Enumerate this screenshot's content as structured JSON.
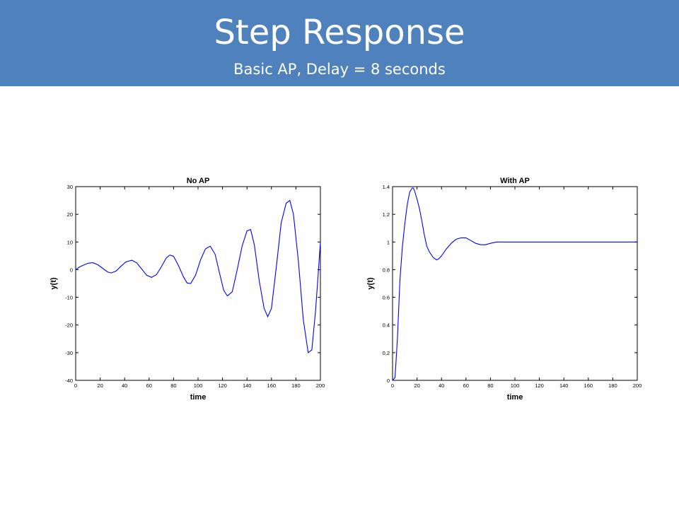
{
  "slide": {
    "title": "Step Response",
    "subtitle": "Basic AP, Delay = 8 seconds",
    "header_color": "#4f81bd"
  },
  "chart_data": [
    {
      "type": "line",
      "title": "No AP",
      "xlabel": "time",
      "ylabel": "y(t)",
      "xlim": [
        0,
        200
      ],
      "ylim": [
        -40,
        30
      ],
      "xticks": [
        0,
        20,
        40,
        60,
        80,
        100,
        120,
        140,
        160,
        180,
        200
      ],
      "yticks": [
        -40,
        -30,
        -20,
        -10,
        0,
        10,
        20,
        30
      ],
      "grid": false,
      "series": [
        {
          "color": "#0000ff",
          "x": [
            0,
            3,
            6,
            10,
            14,
            18,
            22,
            26,
            29,
            33,
            37,
            41,
            46,
            50,
            54,
            58,
            62,
            66,
            70,
            74,
            77,
            80,
            84,
            88,
            91,
            94,
            98,
            102,
            106,
            110,
            114,
            118,
            121,
            124,
            128,
            132,
            136,
            140,
            143,
            146,
            150,
            154,
            157,
            160,
            164,
            168,
            172,
            175,
            178,
            182,
            186,
            190,
            193,
            196,
            198,
            200
          ],
          "y": [
            0,
            0.9,
            1.6,
            2.3,
            2.5,
            1.8,
            0.5,
            -0.8,
            -1.2,
            -0.5,
            1.2,
            2.8,
            3.4,
            2.4,
            0.2,
            -2.0,
            -2.8,
            -1.8,
            1.0,
            4.2,
            5.3,
            4.8,
            1.5,
            -2.5,
            -4.8,
            -5.0,
            -2.0,
            3.5,
            7.5,
            8.5,
            5.5,
            -2.0,
            -7.5,
            -9.5,
            -8.0,
            0,
            8.5,
            14.0,
            14.5,
            9.0,
            -4.0,
            -14.0,
            -17.0,
            -14.0,
            1.0,
            17.0,
            24.0,
            25.0,
            20.0,
            3.0,
            -18.0,
            -30.0,
            -29.0,
            -15.0,
            -3.0,
            10.0
          ]
        }
      ]
    },
    {
      "type": "line",
      "title": "With AP",
      "xlabel": "time",
      "ylabel": "y(t)",
      "xlim": [
        0,
        200
      ],
      "ylim": [
        0,
        1.4
      ],
      "xticks": [
        0,
        20,
        40,
        60,
        80,
        100,
        120,
        140,
        160,
        180,
        200
      ],
      "yticks": [
        0,
        0.2,
        0.4,
        0.6,
        0.8,
        1,
        1.2,
        1.4
      ],
      "grid": false,
      "series": [
        {
          "color": "#0000ff",
          "x": [
            0,
            2,
            4,
            6,
            8,
            10,
            12,
            14,
            16,
            17,
            18,
            20,
            22,
            24,
            26,
            28,
            30,
            33,
            36,
            38,
            40,
            44,
            48,
            52,
            56,
            60,
            64,
            68,
            72,
            76,
            80,
            85,
            90,
            100,
            110,
            120,
            140,
            160,
            180,
            200
          ],
          "y": [
            0,
            0.02,
            0.3,
            0.72,
            0.96,
            1.13,
            1.27,
            1.36,
            1.39,
            1.39,
            1.37,
            1.31,
            1.24,
            1.15,
            1.05,
            0.97,
            0.93,
            0.89,
            0.87,
            0.88,
            0.9,
            0.95,
            0.99,
            1.02,
            1.03,
            1.03,
            1.01,
            0.99,
            0.98,
            0.98,
            0.99,
            1.0,
            1.0,
            1.0,
            1.0,
            1.0,
            1.0,
            1.0,
            1.0,
            1.0
          ]
        }
      ]
    }
  ]
}
